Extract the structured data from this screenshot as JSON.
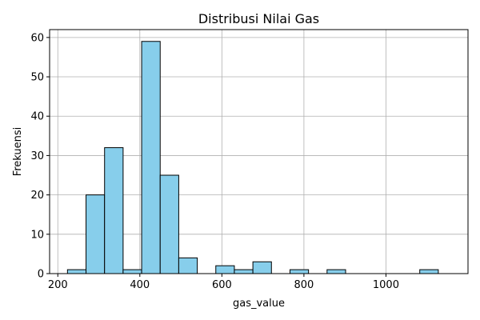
{
  "chart_data": {
    "type": "bar",
    "title": "Distribusi Nilai Gas",
    "xlabel": "gas_value",
    "ylabel": "Frekuensi",
    "bin_edges": [
      223.6,
      268.8,
      314.0,
      359.2,
      404.4,
      449.6,
      494.8,
      540.0,
      585.2,
      630.4,
      675.6,
      720.8,
      766.0,
      811.2,
      856.4,
      901.6,
      946.8,
      992.0,
      1037.2,
      1082.4,
      1127.6,
      1172.8
    ],
    "values": [
      1,
      20,
      32,
      1,
      59,
      25,
      4,
      0,
      2,
      1,
      3,
      0,
      1,
      0,
      1,
      0,
      0,
      0,
      0,
      1,
      0
    ],
    "xlim": [
      180,
      1200
    ],
    "ylim": [
      0,
      62
    ],
    "xticks": [
      200,
      400,
      600,
      800,
      1000
    ],
    "yticks": [
      0,
      10,
      20,
      30,
      40,
      50,
      60
    ],
    "grid": true,
    "colors": {
      "bar_fill": "#87ceeb",
      "bar_edge": "#000000",
      "grid": "#b0b0b0"
    }
  }
}
